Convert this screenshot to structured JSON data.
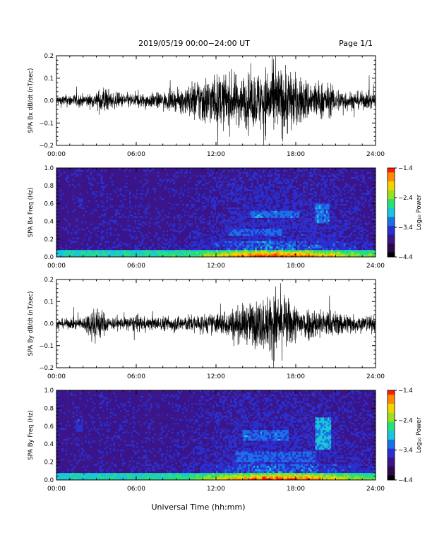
{
  "header": {
    "title": "2019/05/19   00:00−24:00 UT",
    "page": "Page 1/1"
  },
  "footer": {
    "xlabel": "Universal Time (hh:mm)"
  },
  "colors": {
    "trace": "#000000",
    "colormap": [
      "#000000",
      "#2a0a4a",
      "#3a1488",
      "#2a2fcf",
      "#1b70e6",
      "#19c6d8",
      "#28e07a",
      "#9be020",
      "#f2d400",
      "#ff8a00",
      "#ff1a00"
    ]
  },
  "chart_data": [
    {
      "type": "line",
      "ylabel": "SPA Bx dB/dt (nT/sec)",
      "xlim": [
        0,
        24
      ],
      "ylim": [
        -0.2,
        0.2
      ],
      "x_ticks": [
        "00:00",
        "06:00",
        "12:00",
        "18:00",
        "24:00"
      ],
      "y_ticks": [
        "0.2",
        "0.1",
        "0.0",
        "−0.1",
        "−0.2"
      ],
      "envelope": {
        "hours": [
          0,
          1,
          2,
          3,
          3.5,
          4,
          5,
          6,
          7,
          8,
          9,
          10,
          11,
          12,
          13,
          14,
          15,
          16,
          17,
          17.5,
          18,
          19,
          20,
          21,
          22,
          23,
          24
        ],
        "amplitude": [
          0.025,
          0.03,
          0.03,
          0.035,
          0.08,
          0.04,
          0.035,
          0.035,
          0.035,
          0.04,
          0.045,
          0.08,
          0.12,
          0.12,
          0.13,
          0.12,
          0.13,
          0.17,
          0.16,
          0.17,
          0.12,
          0.1,
          0.09,
          0.06,
          0.045,
          0.04,
          0.04
        ]
      }
    },
    {
      "type": "heatmap",
      "ylabel": "SPA Bx Freq (Hz)",
      "xlim": [
        0,
        24
      ],
      "ylim": [
        0,
        1.0
      ],
      "x_ticks": [
        "00:00",
        "06:00",
        "12:00",
        "18:00",
        "24:00"
      ],
      "y_ticks": [
        "1.0",
        "0.8",
        "0.6",
        "0.4",
        "0.2",
        "0.0"
      ],
      "colorbar": {
        "label": "Log₁₀ Power",
        "ticks": [
          "−1.4",
          "−2.4",
          "−3.4",
          "−4.4"
        ],
        "range": [
          -4.4,
          -1.4
        ]
      },
      "features": [
        {
          "kind": "band",
          "t0": 14.5,
          "t1": 18.2,
          "f0": 0.45,
          "f1": 0.52,
          "level": -3.0
        },
        {
          "kind": "band",
          "t0": 13.0,
          "t1": 17.0,
          "f0": 0.25,
          "f1": 0.32,
          "level": -3.1
        },
        {
          "kind": "band",
          "t0": 19.5,
          "t1": 20.5,
          "f0": 0.38,
          "f1": 0.6,
          "level": -3.0
        },
        {
          "kind": "band",
          "t0": 1.6,
          "t1": 2.0,
          "f0": 0.55,
          "f1": 0.65,
          "level": -3.4
        },
        {
          "kind": "line",
          "t": 3.4,
          "level": -3.6
        },
        {
          "kind": "line",
          "t": 6.3,
          "level": -3.7
        }
      ]
    },
    {
      "type": "line",
      "ylabel": "SPA By dB/dt (nT/sec)",
      "xlim": [
        0,
        24
      ],
      "ylim": [
        -0.2,
        0.2
      ],
      "x_ticks": [
        "00:00",
        "06:00",
        "12:00",
        "18:00",
        "24:00"
      ],
      "y_ticks": [
        "0.2",
        "0.1",
        "0.0",
        "−0.1",
        "−0.2"
      ],
      "envelope": {
        "hours": [
          0,
          1,
          2,
          3,
          3.5,
          4,
          5,
          6,
          7,
          8,
          9,
          10,
          11,
          12,
          13,
          14,
          15,
          16,
          16.5,
          17,
          18,
          19,
          20,
          21,
          22,
          23,
          24
        ],
        "amplitude": [
          0.02,
          0.025,
          0.03,
          0.1,
          0.06,
          0.03,
          0.03,
          0.04,
          0.03,
          0.035,
          0.04,
          0.04,
          0.045,
          0.05,
          0.07,
          0.09,
          0.11,
          0.14,
          0.17,
          0.14,
          0.09,
          0.08,
          0.07,
          0.06,
          0.05,
          0.04,
          0.04
        ]
      }
    },
    {
      "type": "heatmap",
      "ylabel": "SPA By Freq (Hz)",
      "xlim": [
        0,
        24
      ],
      "ylim": [
        0,
        1.0
      ],
      "x_ticks": [
        "00:00",
        "06:00",
        "12:00",
        "18:00",
        "24:00"
      ],
      "y_ticks": [
        "1.0",
        "0.8",
        "0.6",
        "0.4",
        "0.2",
        "0.0"
      ],
      "colorbar": {
        "label": "Log₁₀ Power",
        "ticks": [
          "−1.4",
          "−2.4",
          "−3.4",
          "−4.4"
        ],
        "range": [
          -4.4,
          -1.4
        ]
      },
      "features": [
        {
          "kind": "band",
          "t0": 14.0,
          "t1": 17.5,
          "f0": 0.45,
          "f1": 0.55,
          "level": -3.0
        },
        {
          "kind": "band",
          "t0": 13.5,
          "t1": 19.5,
          "f0": 0.2,
          "f1": 0.32,
          "level": -3.1
        },
        {
          "kind": "band",
          "t0": 19.5,
          "t1": 20.6,
          "f0": 0.35,
          "f1": 0.7,
          "level": -2.8
        },
        {
          "kind": "band",
          "t0": 1.5,
          "t1": 2.0,
          "f0": 0.55,
          "f1": 0.68,
          "level": -3.3
        },
        {
          "kind": "line",
          "t": 3.3,
          "level": -3.6
        },
        {
          "kind": "line",
          "t": 6.3,
          "level": -3.7
        }
      ]
    }
  ]
}
